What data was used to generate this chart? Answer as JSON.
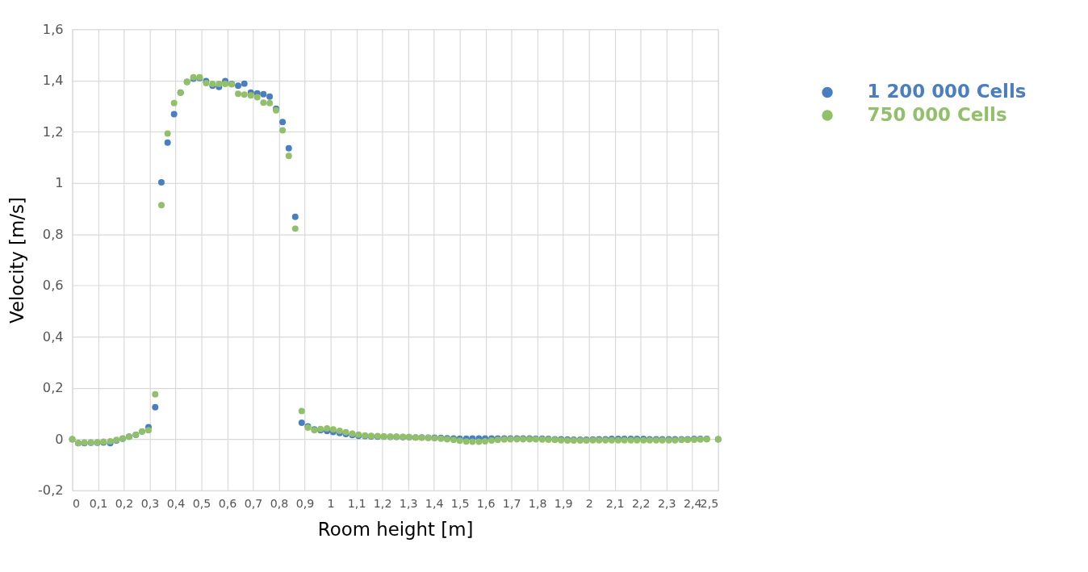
{
  "chart_data": {
    "type": "scatter",
    "xlabel": "Room height [m]",
    "ylabel": "Velocity [m/s]",
    "x": [
      0,
      0.023,
      0.047,
      0.072,
      0.097,
      0.121,
      0.147,
      0.171,
      0.195,
      0.22,
      0.246,
      0.27,
      0.295,
      0.321,
      0.345,
      0.369,
      0.394,
      0.419,
      0.444,
      0.469,
      0.493,
      0.518,
      0.543,
      0.568,
      0.592,
      0.617,
      0.642,
      0.666,
      0.691,
      0.716,
      0.74,
      0.764,
      0.789,
      0.814,
      0.838,
      0.863,
      0.888,
      0.912,
      0.937,
      0.961,
      0.986,
      1.01,
      1.035,
      1.059,
      1.084,
      1.108,
      1.133,
      1.157,
      1.182,
      1.206,
      1.231,
      1.255,
      1.28,
      1.304,
      1.329,
      1.353,
      1.378,
      1.402,
      1.427,
      1.451,
      1.476,
      1.5,
      1.525,
      1.549,
      1.574,
      1.598,
      1.623,
      1.647,
      1.672,
      1.696,
      1.721,
      1.745,
      1.77,
      1.794,
      1.819,
      1.843,
      1.868,
      1.892,
      1.917,
      1.941,
      1.966,
      1.99,
      2.015,
      2.039,
      2.064,
      2.088,
      2.113,
      2.137,
      2.162,
      2.186,
      2.211,
      2.235,
      2.26,
      2.284,
      2.309,
      2.333,
      2.358,
      2.382,
      2.407,
      2.431,
      2.456,
      2.5
    ],
    "series": [
      {
        "name": "1 200 000 Cells",
        "color": "#4a7ebf",
        "values": [
          0,
          -0.015,
          -0.015,
          -0.014,
          -0.014,
          -0.013,
          -0.015,
          -0.005,
          0.002,
          0.01,
          0.017,
          0.03,
          0.047,
          0.125,
          1.003,
          1.158,
          1.269,
          1.353,
          1.395,
          1.407,
          1.41,
          1.398,
          1.38,
          1.375,
          1.398,
          1.387,
          1.38,
          1.388,
          1.353,
          1.35,
          1.347,
          1.337,
          1.29,
          1.238,
          1.136,
          0.868,
          0.064,
          0.05,
          0.038,
          0.035,
          0.032,
          0.028,
          0.024,
          0.02,
          0.016,
          0.013,
          0.012,
          0.011,
          0.01,
          0.01,
          0.009,
          0.009,
          0.008,
          0.008,
          0.007,
          0.007,
          0.006,
          0.006,
          0.005,
          0.004,
          0.003,
          0.002,
          0.002,
          0.003,
          0.003,
          0.003,
          0.003,
          0.003,
          0.003,
          0.003,
          0.003,
          0.003,
          0.003,
          0.002,
          0.002,
          0.001,
          0,
          0,
          -0.001,
          -0.002,
          -0.002,
          -0.002,
          -0.001,
          0,
          0,
          0.001,
          0.001,
          0.001,
          0.001,
          0.001,
          0.001,
          0,
          0,
          0,
          0,
          0,
          0,
          0,
          0.001,
          0.001,
          0.001,
          0
        ]
      },
      {
        "name": "750 000 Cells",
        "color": "#92c06a",
        "values": [
          0,
          -0.015,
          -0.013,
          -0.013,
          -0.012,
          -0.01,
          -0.008,
          -0.003,
          0.003,
          0.01,
          0.018,
          0.03,
          0.035,
          0.175,
          0.914,
          1.193,
          1.312,
          1.353,
          1.395,
          1.413,
          1.413,
          1.39,
          1.387,
          1.387,
          1.387,
          1.385,
          1.348,
          1.345,
          1.342,
          1.335,
          1.314,
          1.312,
          1.284,
          1.206,
          1.106,
          0.822,
          0.11,
          0.045,
          0.035,
          0.04,
          0.042,
          0.038,
          0.033,
          0.027,
          0.022,
          0.018,
          0.015,
          0.013,
          0.012,
          0.011,
          0.01,
          0.01,
          0.009,
          0.008,
          0.007,
          0.006,
          0.005,
          0.004,
          0.002,
          0,
          -0.003,
          -0.006,
          -0.009,
          -0.01,
          -0.01,
          -0.008,
          -0.005,
          -0.003,
          -0.001,
          0,
          0,
          0,
          0,
          0,
          -0.001,
          -0.002,
          -0.003,
          -0.004,
          -0.005,
          -0.005,
          -0.005,
          -0.005,
          -0.004,
          -0.004,
          -0.004,
          -0.004,
          -0.004,
          -0.004,
          -0.004,
          -0.004,
          -0.004,
          -0.004,
          -0.004,
          -0.004,
          -0.004,
          -0.004,
          -0.003,
          -0.003,
          -0.002,
          -0.001,
          0,
          0
        ]
      }
    ],
    "xlim": [
      0,
      2.5
    ],
    "xticks": [
      0,
      {
        "value": 0.1,
        "label": "0,1"
      },
      {
        "value": 0.2,
        "label": "0,2"
      },
      {
        "value": 0.3,
        "label": "0,3"
      },
      {
        "value": 0.4,
        "label": "0,4"
      },
      {
        "value": 0.5,
        "label": "0,5"
      },
      {
        "value": 0.6,
        "label": "0,6"
      },
      {
        "value": 0.7,
        "label": "0,7"
      },
      {
        "value": 0.8,
        "label": "0,8"
      },
      {
        "value": 0.9,
        "label": "0,9"
      },
      1,
      {
        "value": 1.1,
        "label": "1,1"
      },
      {
        "value": 1.2,
        "label": "1,2"
      },
      {
        "value": 1.3,
        "label": "1,3"
      },
      {
        "value": 1.4,
        "label": "1,4"
      },
      {
        "value": 1.5,
        "label": "1,5"
      },
      {
        "value": 1.6,
        "label": "1,6"
      },
      {
        "value": 1.7,
        "label": "1,7"
      },
      {
        "value": 1.8,
        "label": "1,8"
      },
      {
        "value": 1.9,
        "label": "1,9"
      },
      2,
      {
        "value": 2.1,
        "label": "2,1"
      },
      {
        "value": 2.2,
        "label": "2,2"
      },
      {
        "value": 2.3,
        "label": "2,3"
      },
      {
        "value": 2.4,
        "label": "2,4"
      },
      {
        "value": 2.5,
        "label": "2,5"
      }
    ],
    "ylim": [
      -0.2,
      1.6
    ],
    "yticks": [
      {
        "value": -0.2,
        "label": "-0,2"
      },
      0,
      {
        "value": 0.2,
        "label": "0,2"
      },
      {
        "value": 0.4,
        "label": "0,4"
      },
      {
        "value": 0.6,
        "label": "0,6"
      },
      {
        "value": 0.8,
        "label": "0,8"
      },
      1,
      {
        "value": 1.2,
        "label": "1,2"
      },
      {
        "value": 1.4,
        "label": "1,4"
      },
      {
        "value": 1.6,
        "label": "1,6"
      }
    ],
    "grid": true,
    "legend": "top right",
    "marker": "circle"
  }
}
